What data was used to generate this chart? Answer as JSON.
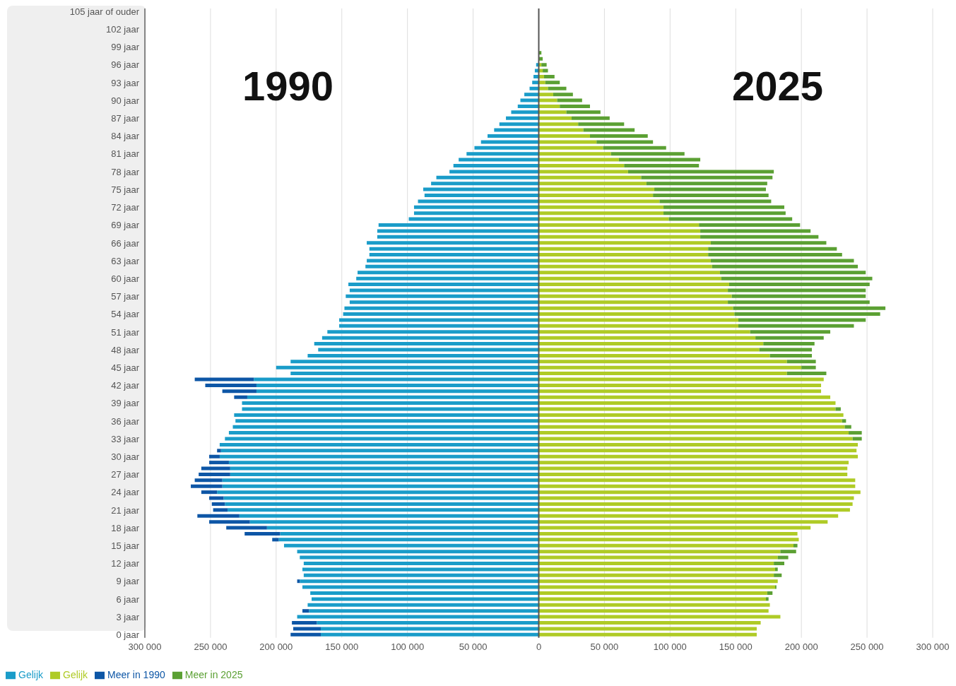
{
  "chart_data": {
    "type": "bar",
    "orientation": "horizontal",
    "stacked": true,
    "categories": [
      "105 jaar of ouder",
      null,
      null,
      "102 jaar",
      null,
      null,
      "99 jaar",
      null,
      null,
      "96 jaar",
      null,
      null,
      "93 jaar",
      null,
      null,
      "90 jaar",
      null,
      null,
      "87 jaar",
      null,
      null,
      "84 jaar",
      null,
      null,
      "81 jaar",
      null,
      null,
      "78 jaar",
      null,
      null,
      "75 jaar",
      null,
      null,
      "72 jaar",
      null,
      null,
      "69 jaar",
      null,
      null,
      "66 jaar",
      null,
      null,
      "63 jaar",
      null,
      null,
      "60 jaar",
      null,
      null,
      "57 jaar",
      null,
      null,
      "54 jaar",
      null,
      null,
      "51 jaar",
      null,
      null,
      "48 jaar",
      null,
      null,
      "45 jaar",
      null,
      null,
      "42 jaar",
      null,
      null,
      "39 jaar",
      null,
      null,
      "36 jaar",
      null,
      null,
      "33 jaar",
      null,
      null,
      "30 jaar",
      null,
      null,
      "27 jaar",
      null,
      null,
      "24 jaar",
      null,
      null,
      "21 jaar",
      null,
      null,
      "18 jaar",
      null,
      null,
      "15 jaar",
      null,
      null,
      "12 jaar",
      null,
      null,
      "9 jaar",
      null,
      null,
      "6 jaar",
      null,
      null,
      "3 jaar",
      null,
      null,
      "0 jaar"
    ],
    "series": [
      {
        "name": "Gelijk",
        "color": "#1a9cc9",
        "values": [
          0,
          0,
          0,
          0,
          0,
          0,
          0,
          0,
          0,
          -2000,
          -3000,
          -4000,
          -5000,
          -7000,
          -11000,
          -14000,
          -16000,
          -21000,
          -25000,
          -30000,
          -34000,
          -39000,
          -44000,
          -49000,
          -55000,
          -61000,
          -65000,
          -68000,
          -78000,
          -82000,
          -88000,
          -87000,
          -92000,
          -95000,
          -95000,
          -99000,
          -122000,
          -123000,
          -123000,
          -131000,
          -129000,
          -129000,
          -131000,
          -132000,
          -138000,
          -139000,
          -145000,
          -144000,
          -147000,
          -144000,
          -148000,
          -149000,
          -152000,
          -152000,
          -161000,
          -165000,
          -171000,
          -168000,
          -176000,
          -189000,
          -200000,
          -189000,
          -217000,
          -215000,
          -215000,
          -222000,
          -226000,
          -226000,
          -232000,
          -231000,
          -233000,
          -236000,
          -239000,
          -243000,
          -242000,
          -243000,
          -236000,
          -235000,
          -235000,
          -241000,
          -241000,
          -245000,
          -240000,
          -239000,
          -237000,
          -228000,
          -220000,
          -207000,
          -197000,
          -198000,
          -194000,
          -184000,
          -182000,
          -179000,
          -180000,
          -179000,
          -182000,
          -180000,
          -174000,
          -173000,
          -176000,
          -175000,
          -184000,
          -169000,
          -166000,
          -166000
        ]
      },
      {
        "name": "Meer in 1990",
        "color": "#0d56a6",
        "values": [
          0,
          0,
          0,
          0,
          0,
          0,
          0,
          0,
          0,
          0,
          0,
          0,
          0,
          0,
          0,
          0,
          0,
          0,
          0,
          0,
          0,
          0,
          0,
          0,
          0,
          0,
          0,
          0,
          0,
          0,
          0,
          0,
          0,
          0,
          0,
          0,
          0,
          0,
          0,
          0,
          0,
          0,
          0,
          0,
          0,
          0,
          0,
          0,
          0,
          0,
          0,
          0,
          0,
          0,
          0,
          0,
          0,
          0,
          0,
          0,
          0,
          0,
          -45000,
          -39000,
          -26000,
          -10000,
          0,
          0,
          0,
          0,
          0,
          0,
          0,
          0,
          -3000,
          -8000,
          -15000,
          -22000,
          -24000,
          -21000,
          -24000,
          -12000,
          -11000,
          -10000,
          -11000,
          -32000,
          -31000,
          -31000,
          -27000,
          -5000,
          0,
          0,
          0,
          0,
          0,
          0,
          -2000,
          0,
          0,
          0,
          0,
          -5000,
          0,
          -19000,
          -21000,
          -23000
        ]
      },
      {
        "name": "Gelijk",
        "color": "#afcb26",
        "values": [
          0,
          0,
          0,
          0,
          0,
          0,
          0,
          0,
          0,
          2000,
          3000,
          4000,
          5000,
          7000,
          11000,
          14000,
          16000,
          21000,
          25000,
          30000,
          34000,
          39000,
          44000,
          49000,
          55000,
          61000,
          65000,
          68000,
          78000,
          82000,
          88000,
          87000,
          92000,
          95000,
          95000,
          99000,
          122000,
          123000,
          123000,
          131000,
          129000,
          129000,
          131000,
          132000,
          138000,
          139000,
          145000,
          144000,
          147000,
          144000,
          148000,
          149000,
          152000,
          152000,
          161000,
          165000,
          171000,
          168000,
          176000,
          189000,
          200000,
          189000,
          217000,
          215000,
          215000,
          222000,
          226000,
          226000,
          232000,
          231000,
          233000,
          236000,
          239000,
          243000,
          242000,
          243000,
          236000,
          235000,
          235000,
          241000,
          241000,
          245000,
          240000,
          239000,
          237000,
          228000,
          220000,
          207000,
          197000,
          198000,
          194000,
          184000,
          182000,
          179000,
          180000,
          179000,
          182000,
          180000,
          174000,
          173000,
          176000,
          175000,
          184000,
          169000,
          166000,
          166000
        ]
      },
      {
        "name": "Meer in 2025",
        "color": "#5ba033",
        "values": [
          0,
          0,
          0,
          0,
          0,
          0,
          0,
          2000,
          3000,
          4000,
          4000,
          8000,
          11000,
          14000,
          15000,
          19000,
          23000,
          26000,
          29000,
          35000,
          39000,
          44000,
          43000,
          48000,
          56000,
          62000,
          57000,
          111000,
          100000,
          92000,
          85000,
          88000,
          85000,
          92000,
          93000,
          94000,
          77000,
          84000,
          90000,
          88000,
          98000,
          102000,
          109000,
          111000,
          111000,
          115000,
          107000,
          105000,
          102000,
          108000,
          116000,
          111000,
          97000,
          88000,
          61000,
          52000,
          39000,
          40000,
          32000,
          22000,
          11000,
          30000,
          0,
          0,
          0,
          0,
          0,
          4000,
          0,
          3000,
          5000,
          10000,
          7000,
          0,
          0,
          0,
          0,
          0,
          0,
          0,
          0,
          0,
          0,
          0,
          0,
          0,
          0,
          0,
          0,
          0,
          3000,
          12000,
          8000,
          8000,
          2000,
          6000,
          0,
          1000,
          4000,
          2000,
          0,
          0,
          0,
          0,
          0,
          0
        ]
      }
    ],
    "xlim": [
      -300000,
      300000
    ],
    "xticks": [
      {
        "value": -300000,
        "label": "300 000"
      },
      {
        "value": -250000,
        "label": "250 000"
      },
      {
        "value": -200000,
        "label": "200 000"
      },
      {
        "value": -150000,
        "label": "150 000"
      },
      {
        "value": -100000,
        "label": "100 000"
      },
      {
        "value": -50000,
        "label": "50 000"
      },
      0,
      {
        "value": 50000,
        "label": "50 000"
      },
      {
        "value": 100000,
        "label": "100 000"
      },
      {
        "value": 150000,
        "label": "150 000"
      },
      {
        "value": 200000,
        "label": "200 000"
      },
      {
        "value": 250000,
        "label": "250 000"
      },
      {
        "value": 300000,
        "label": "300 000"
      }
    ],
    "ref_lines": [
      {
        "axis": "x",
        "value": 0,
        "color": "#555555"
      }
    ],
    "annotations": [
      "1990",
      "2025"
    ],
    "grid": "x",
    "legend": "bottom left"
  }
}
